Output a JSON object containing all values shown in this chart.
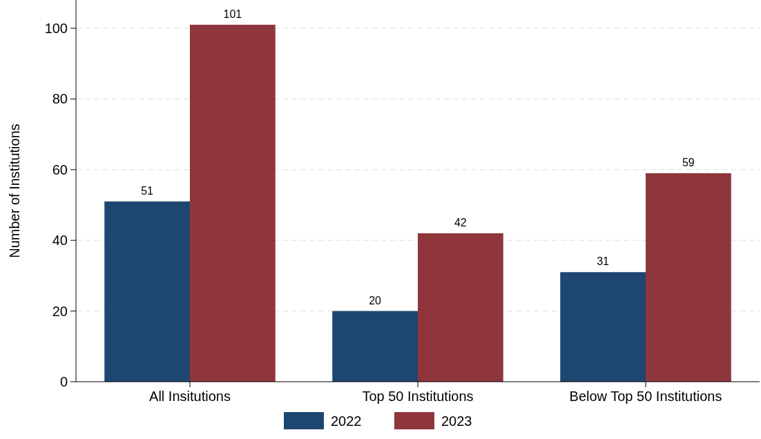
{
  "chart_data": {
    "type": "bar",
    "ylabel": "Number of Institutions",
    "categories": [
      "All Insitutions",
      "Top 50 Institutions",
      "Below Top 50 Institutions"
    ],
    "series": [
      {
        "name": "2022",
        "color": "#1d4770",
        "values": [
          51,
          20,
          31
        ]
      },
      {
        "name": "2023",
        "color": "#8f353c",
        "values": [
          101,
          42,
          59
        ]
      }
    ],
    "ylim": [
      0,
      108
    ],
    "yticks": [
      0,
      20,
      40,
      60,
      80,
      100
    ],
    "grid": "y",
    "legend": "bottom",
    "data_labels": true
  }
}
